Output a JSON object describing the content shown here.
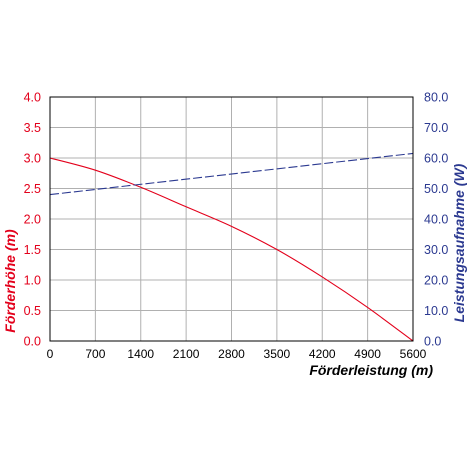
{
  "chart_data": {
    "type": "line",
    "xlabel": "Förderleistung (m)",
    "ylabel_left": "Förderhöhe (m)",
    "ylabel_right": "Leistungsaufnahme (W)",
    "x_ticks": [
      "0",
      "700",
      "1400",
      "2100",
      "2800",
      "3500",
      "4200",
      "4900",
      "5600"
    ],
    "y_left_ticks": [
      "0.0",
      "0.5",
      "1.0",
      "1.5",
      "2.0",
      "2.5",
      "3.0",
      "3.5",
      "4.0"
    ],
    "y_right_ticks": [
      "0.0",
      "10.0",
      "20.0",
      "30.0",
      "40.0",
      "50.0",
      "60.0",
      "70.0",
      "80.0"
    ],
    "xlim": [
      0,
      5600
    ],
    "ylim_left": [
      0,
      4
    ],
    "ylim_right": [
      0,
      80
    ],
    "grid": true,
    "colors": {
      "left_axis": "#e3001b",
      "right_axis": "#2b3990",
      "grid": "#b0b0b0",
      "frame": "#000000"
    },
    "series": [
      {
        "axis": "left",
        "style": "solid",
        "color": "#e3001b",
        "x": [
          0,
          700,
          1400,
          2100,
          2800,
          3500,
          4200,
          4900,
          5600
        ],
        "y": [
          3.0,
          2.8,
          2.52,
          2.2,
          1.88,
          1.5,
          1.05,
          0.55,
          0.0
        ]
      },
      {
        "axis": "right",
        "style": "dashed",
        "color": "#2b3990",
        "x": [
          0,
          5600
        ],
        "y": [
          48.0,
          61.5
        ]
      }
    ]
  }
}
